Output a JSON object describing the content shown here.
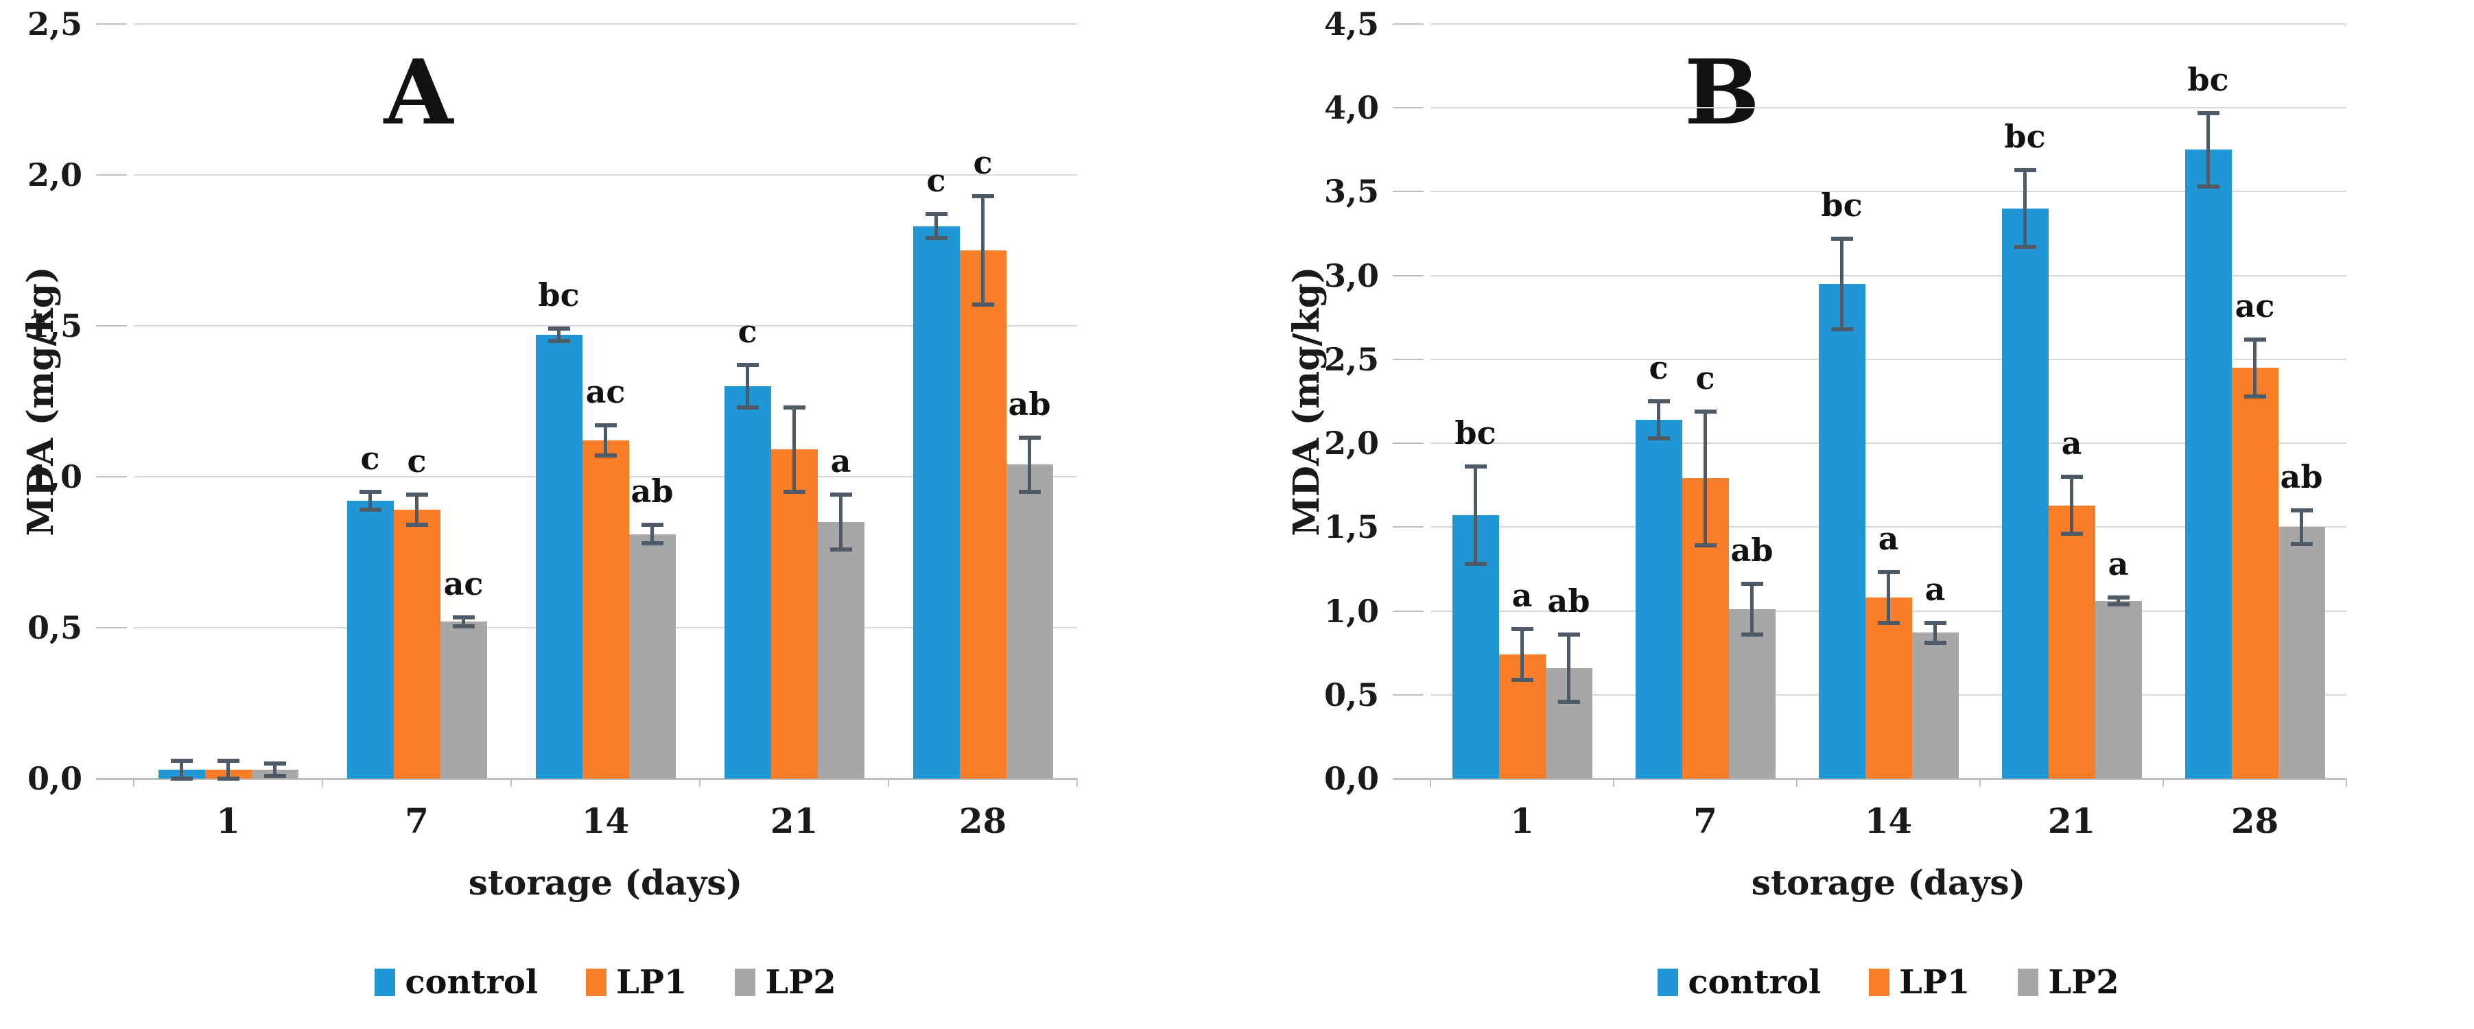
{
  "figure": {
    "type": "grouped-bar-figure",
    "panels_count": 2,
    "background": "#ffffff"
  },
  "colors": {
    "control": "#2097d4",
    "lp1": "#f87e2a",
    "lp2": "#a7a7a7",
    "error_bar": "#4e5b66",
    "gridline": "#d9d9d9",
    "axis_line": "#bfbfbf",
    "text": "#111111"
  },
  "chart_data": [
    {
      "type": "bar",
      "panel_label": "A",
      "title": "A",
      "xlabel": "storage (days)",
      "ylabel": "MDA (mg/kg)",
      "ylim": [
        0,
        2.5
      ],
      "ytick_step": 0.5,
      "ytick_labels": [
        "0,0",
        "0,5",
        "1,0",
        "1,5",
        "2,0",
        "2,5"
      ],
      "grid": true,
      "legend_position": "bottom",
      "categories": [
        "1",
        "7",
        "14",
        "21",
        "28"
      ],
      "series": [
        {
          "name": "control",
          "color": "#2097d4",
          "values": [
            0.03,
            0.92,
            1.47,
            1.3,
            1.83
          ],
          "errors": [
            0.03,
            0.03,
            0.02,
            0.07,
            0.04
          ],
          "sig_labels": [
            "",
            "c",
            "bc",
            "c",
            "c"
          ]
        },
        {
          "name": "LP1",
          "color": "#f87e2a",
          "values": [
            0.03,
            0.89,
            1.12,
            1.09,
            1.75
          ],
          "errors": [
            0.03,
            0.05,
            0.05,
            0.14,
            0.18
          ],
          "sig_labels": [
            "",
            "c",
            "ac",
            "",
            "c"
          ]
        },
        {
          "name": "LP2",
          "color": "#a7a7a7",
          "values": [
            0.03,
            0.52,
            0.81,
            0.85,
            1.04
          ],
          "errors": [
            0.02,
            0.015,
            0.03,
            0.09,
            0.09
          ],
          "sig_labels": [
            "",
            "ac",
            "ab",
            "a",
            "ab"
          ]
        }
      ]
    },
    {
      "type": "bar",
      "panel_label": "B",
      "title": "B",
      "xlabel": "storage (days)",
      "ylabel": "MDA (mg/kg)",
      "ylim": [
        0,
        4.5
      ],
      "ytick_step": 0.5,
      "ytick_labels": [
        "0,0",
        "0,5",
        "1,0",
        "1,5",
        "2,0",
        "2,5",
        "3,0",
        "3,5",
        "4,0",
        "4,5"
      ],
      "grid": true,
      "legend_position": "bottom",
      "categories": [
        "1",
        "7",
        "14",
        "21",
        "28"
      ],
      "series": [
        {
          "name": "control",
          "color": "#2097d4",
          "values": [
            1.57,
            2.14,
            2.95,
            3.4,
            3.75
          ],
          "errors": [
            0.29,
            0.11,
            0.27,
            0.23,
            0.22
          ],
          "sig_labels": [
            "bc",
            "c",
            "bc",
            "bc",
            "bc"
          ]
        },
        {
          "name": "LP1",
          "color": "#f87e2a",
          "values": [
            0.74,
            1.79,
            1.08,
            1.63,
            2.45
          ],
          "errors": [
            0.15,
            0.4,
            0.15,
            0.17,
            0.17
          ],
          "sig_labels": [
            "a",
            "c",
            "a",
            "a",
            "ac"
          ]
        },
        {
          "name": "LP2",
          "color": "#a7a7a7",
          "values": [
            0.66,
            1.01,
            0.87,
            1.06,
            1.5
          ],
          "errors": [
            0.2,
            0.15,
            0.06,
            0.02,
            0.1
          ],
          "sig_labels": [
            "ab",
            "ab",
            "a",
            "a",
            "ab"
          ]
        }
      ]
    }
  ]
}
